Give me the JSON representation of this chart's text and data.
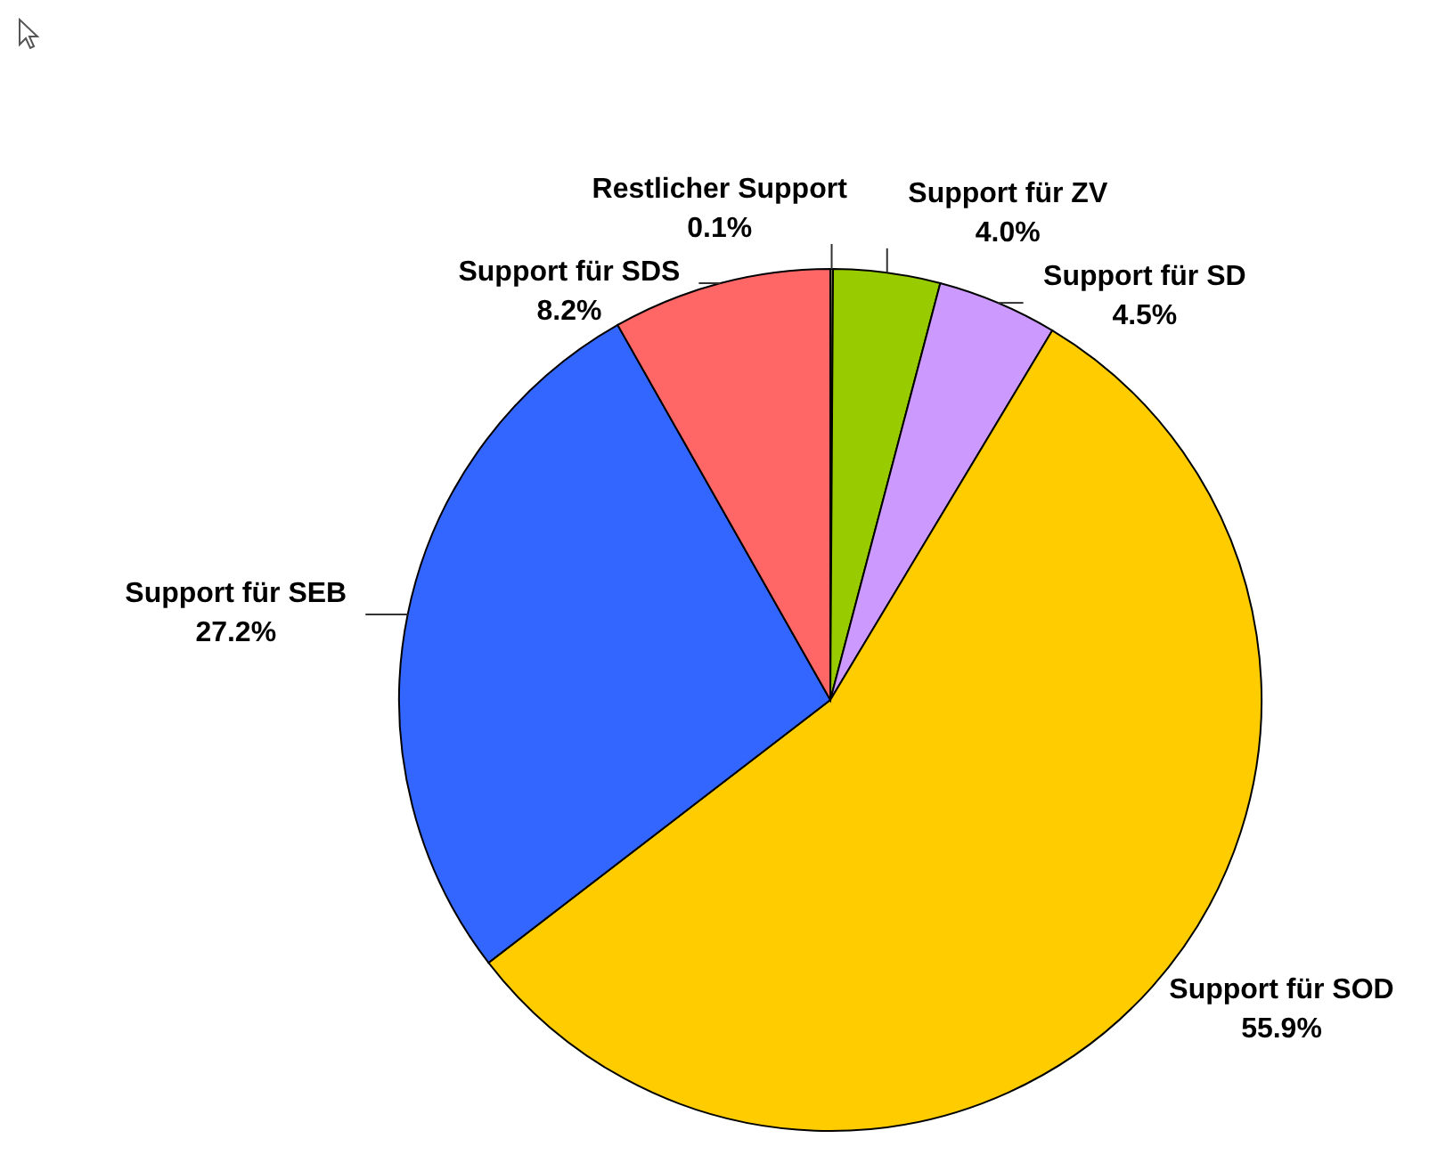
{
  "chart_data": {
    "type": "pie",
    "categories": [
      "Restlicher Support",
      "Support für ZV",
      "Support für SD",
      "Support für SOD",
      "Support für SEB",
      "Support für SDS"
    ],
    "values": [
      0.1,
      4.0,
      4.5,
      55.9,
      27.2,
      8.2
    ],
    "value_labels": [
      "0.1%",
      "4.0%",
      "4.5%",
      "55.9%",
      "27.2%",
      "8.2%"
    ],
    "colors": [
      "#808060",
      "#99cc00",
      "#cc99ff",
      "#ffcc00",
      "#3366ff",
      "#ff6666"
    ]
  }
}
